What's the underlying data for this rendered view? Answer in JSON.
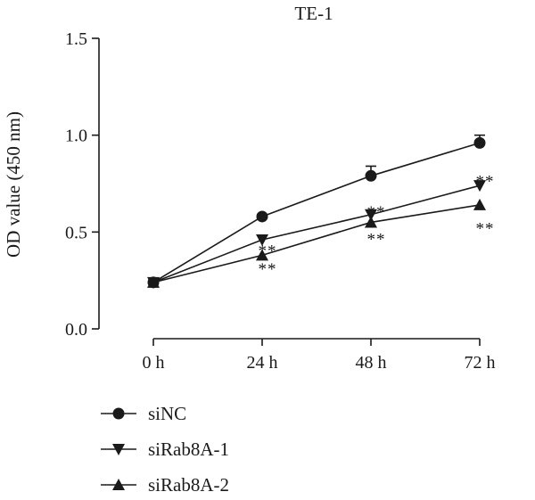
{
  "chart_data": {
    "type": "line",
    "title": "TE-1",
    "xlabel": "",
    "ylabel": "OD value (450 nm)",
    "categories": [
      "0 h",
      "24 h",
      "48 h",
      "72 h"
    ],
    "ylim": [
      0,
      1.5
    ],
    "yticks": [
      "0.0",
      "0.5",
      "1.0",
      "1.5"
    ],
    "legend_position": "bottom-left",
    "grid": false,
    "series": [
      {
        "name": "siNC",
        "marker": "circle",
        "values": [
          0.24,
          0.58,
          0.79,
          0.96
        ],
        "errors": [
          0.01,
          0.01,
          0.05,
          0.04
        ]
      },
      {
        "name": "siRab8A-1",
        "marker": "triangle-down",
        "values": [
          0.24,
          0.46,
          0.59,
          0.74
        ],
        "errors": [
          0,
          0,
          0,
          0
        ]
      },
      {
        "name": "siRab8A-2",
        "marker": "triangle-up",
        "values": [
          0.24,
          0.38,
          0.55,
          0.64
        ],
        "errors": [
          0,
          0,
          0,
          0
        ]
      }
    ],
    "annotations": [
      {
        "text": "**",
        "category": "24 h",
        "value": 0.43
      },
      {
        "text": "**",
        "category": "24 h",
        "value": 0.335
      },
      {
        "text": "**",
        "category": "48 h",
        "value": 0.63
      },
      {
        "text": "**",
        "category": "48 h",
        "value": 0.49
      },
      {
        "text": "**",
        "category": "72 h",
        "value": 0.79
      },
      {
        "text": "**",
        "category": "72 h",
        "value": 0.545
      }
    ]
  }
}
